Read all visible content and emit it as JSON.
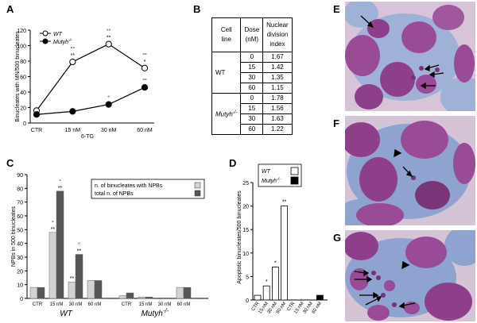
{
  "panel_letters": {
    "A": "A",
    "B": "B",
    "C": "C",
    "D": "D",
    "E": "E",
    "F": "F",
    "G": "G"
  },
  "colors": {
    "wt_fill": "#ffffff",
    "mutyh_fill": "#000000",
    "npb_binucleate": "#d3d3d3",
    "npb_total": "#555555",
    "cell_cytoplasm": "#8fa6cf",
    "nucleus": "#8d3f8c",
    "background_pink": "#d5c3d6"
  },
  "icons": {
    "arrow": "arrow-icon",
    "arrowhead": "arrowhead-icon"
  },
  "chart_data": [
    {
      "id": "A",
      "type": "line",
      "title": "",
      "xlabel": "6-TG",
      "ylabel": "Binucleates with MN/500 binucleates",
      "categories": [
        "CTR",
        "15 nM",
        "30 nM",
        "60 nM"
      ],
      "ylim": [
        0,
        120
      ],
      "yticks": [
        0,
        20,
        40,
        60,
        80,
        100,
        120
      ],
      "series": [
        {
          "name": "WT",
          "values": [
            16,
            79,
            102,
            71
          ],
          "marker": "open-circle"
        },
        {
          "name": "Mutyh-/-",
          "values": [
            11,
            15,
            24,
            46
          ],
          "marker": "filled-circle"
        }
      ],
      "legend": [
        "WT",
        "Mutyh-/-"
      ],
      "annotations": [
        {
          "category": "15 nM",
          "series": "WT",
          "text": [
            "°°",
            "**"
          ]
        },
        {
          "category": "30 nM",
          "series": "WT",
          "text": [
            "°°",
            "**"
          ]
        },
        {
          "category": "60 nM",
          "series": "WT",
          "text": [
            "°°",
            "*"
          ]
        },
        {
          "category": "30 nM",
          "series": "Mutyh-/-",
          "text": [
            "°"
          ]
        },
        {
          "category": "60 nM",
          "series": "Mutyh-/-",
          "text": [
            "°°"
          ]
        }
      ]
    },
    {
      "id": "B",
      "type": "table",
      "headers": [
        "Cell line",
        "Dose (nM)",
        "Nuclear division index"
      ],
      "header_lines": [
        [
          "Cell",
          "line"
        ],
        [
          "Dose",
          "(nM)"
        ],
        [
          "Nuclear",
          "division",
          "index"
        ]
      ],
      "groups": [
        {
          "line": "WT",
          "rows": [
            [
              "0",
              "1.67"
            ],
            [
              "15",
              "1.42"
            ],
            [
              "30",
              "1.35"
            ],
            [
              "60",
              "1.15"
            ]
          ]
        },
        {
          "line": "Mutyh-/-",
          "rows": [
            [
              "0",
              "1.78"
            ],
            [
              "15",
              "1.56"
            ],
            [
              "30",
              "1.63"
            ],
            [
              "60",
              "1.22"
            ]
          ]
        }
      ]
    },
    {
      "id": "C",
      "type": "bar",
      "ylabel": "NPBs in 500 binucleates",
      "ylim": [
        0,
        90
      ],
      "yticks": [
        0,
        10,
        20,
        30,
        40,
        50,
        60,
        70,
        80,
        90
      ],
      "groups": [
        {
          "name": "WT",
          "categories": [
            "CTR",
            "15 nM",
            "30 nM",
            "60 nM"
          ],
          "series": [
            {
              "name": "n. of binucleates with NPBs",
              "values": [
                8,
                48,
                12,
                13
              ]
            },
            {
              "name": "total n. of NPBs",
              "values": [
                8,
                78,
                32,
                13
              ]
            }
          ]
        },
        {
          "name": "Mutyh-/-",
          "categories": [
            "CTR",
            "15 nM",
            "30 nM",
            "60 nM"
          ],
          "series": [
            {
              "name": "n. of binucleates with NPBs",
              "values": [
                2,
                1,
                0,
                8
              ]
            },
            {
              "name": "total n. of NPBs",
              "values": [
                4,
                1,
                0,
                8
              ]
            }
          ]
        }
      ],
      "legend": [
        "n. of binucleates with NPBs",
        "total n. of NPBs"
      ],
      "annotations": [
        {
          "group": "WT",
          "category": "15 nM",
          "series": "n. of binucleates with NPBs",
          "text": [
            "°",
            "**"
          ]
        },
        {
          "group": "WT",
          "category": "15 nM",
          "series": "total n. of NPBs",
          "text": [
            "°",
            "**"
          ]
        },
        {
          "group": "WT",
          "category": "30 nM",
          "series": "n. of binucleates with NPBs",
          "text": [
            "**"
          ]
        },
        {
          "group": "WT",
          "category": "30 nM",
          "series": "total n. of NPBs",
          "text": [
            "°",
            "**"
          ]
        }
      ]
    },
    {
      "id": "D",
      "type": "bar",
      "ylabel": "Apoptotic binucleates/500 binucleates",
      "ylim": [
        0,
        25
      ],
      "yticks": [
        0,
        5,
        10,
        15,
        20,
        25
      ],
      "categories": [
        "CTR",
        "15 nM",
        "30 nM",
        "60 nM",
        "CTR",
        "15 nM",
        "30 nM",
        "60 nM"
      ],
      "series": [
        {
          "name": "WT",
          "values": [
            1,
            3,
            7,
            20,
            null,
            null,
            null,
            null
          ]
        },
        {
          "name": "Mutyh-/-",
          "values": [
            null,
            null,
            null,
            null,
            0,
            0,
            0,
            1
          ]
        }
      ],
      "legend": [
        "WT",
        "Mutyh-/-"
      ],
      "annotations": [
        {
          "category_index": 1,
          "text": "*"
        },
        {
          "category_index": 2,
          "text": "*"
        },
        {
          "category_index": 3,
          "text": "**"
        }
      ]
    }
  ]
}
